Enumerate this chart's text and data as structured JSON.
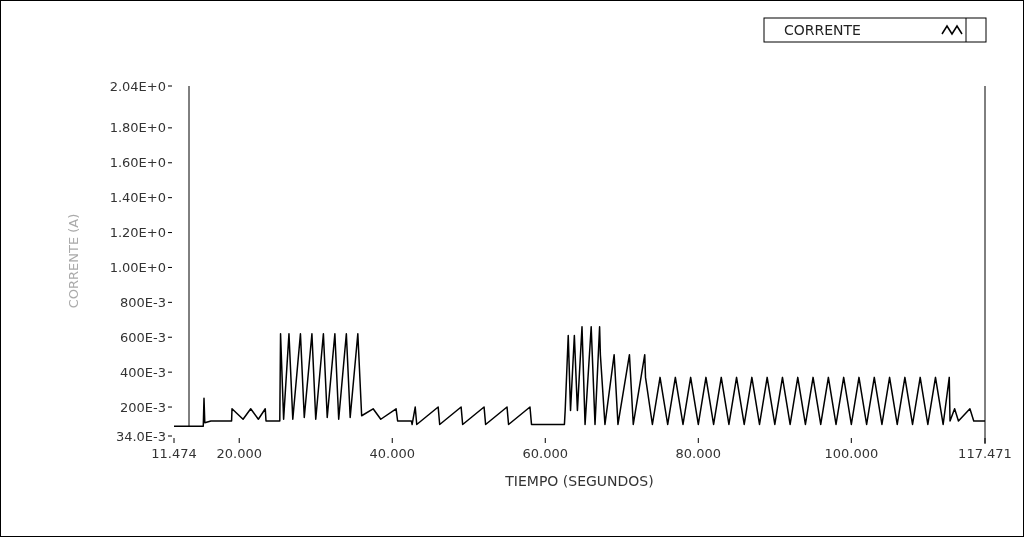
{
  "chart_data": {
    "type": "line",
    "xlabel": "TIEMPO (SEGUNDOS)",
    "ylabel": "CORRENTE (A)",
    "legend": "top right",
    "xlim": [
      11.474,
      117.471
    ],
    "xticks": [
      11.474,
      {
        "value": 20,
        "label": "20.000"
      },
      {
        "value": 40,
        "label": "40.000"
      },
      {
        "value": 60,
        "label": "60.000"
      },
      {
        "value": 80,
        "label": "80.000"
      },
      {
        "value": 100,
        "label": "100.000"
      },
      117.471
    ],
    "ylim": [
      0.034,
      2.04
    ],
    "yticks": [
      {
        "value": 0.034,
        "label": "34.0E-3"
      },
      {
        "value": 0.2,
        "label": "200E-3"
      },
      {
        "value": 0.4,
        "label": "400E-3"
      },
      {
        "value": 0.6,
        "label": "600E-3"
      },
      {
        "value": 0.8,
        "label": "800E-3"
      },
      {
        "value": 1.0,
        "label": "1.00E+0"
      },
      {
        "value": 1.2,
        "label": "1.20E+0"
      },
      {
        "value": 1.4,
        "label": "1.40E+0"
      },
      {
        "value": 1.6,
        "label": "1.60E+0"
      },
      {
        "value": 1.8,
        "label": "1.80E+0"
      },
      {
        "value": 2.04,
        "label": "2.04E+0"
      }
    ],
    "series": [
      {
        "name": "CORRENTE",
        "color": "#000000",
        "x": [
          11.474,
          15.3,
          15.395,
          15.5,
          16.3,
          19,
          19.055,
          20.5,
          21.5,
          22.5,
          23.4,
          23.5,
          25.3,
          25.4,
          25.8,
          26.5,
          27,
          28,
          28.5,
          29.5,
          30,
          31,
          31.5,
          32.5,
          33,
          34,
          34.5,
          35.5,
          36,
          37.5,
          38.5,
          40.5,
          40.7,
          42.5,
          42.6,
          43,
          43.2,
          46,
          46.2,
          49,
          49.2,
          52,
          52.2,
          55,
          55.2,
          58,
          58.2,
          62.5,
          62.6,
          63,
          63.3,
          63.8,
          64.2,
          64.8,
          65.2,
          66,
          66.5,
          67.1,
          67.2,
          67.8,
          69,
          69.5,
          71,
          71.5,
          73,
          73.1,
          74,
          75,
          76,
          77,
          78,
          79,
          80,
          81,
          82,
          83,
          84,
          85,
          86,
          87,
          88,
          89,
          90,
          91,
          92,
          93,
          94,
          95,
          96,
          97,
          98,
          99,
          100,
          101,
          102,
          103,
          104,
          105,
          106,
          107,
          108,
          109,
          110,
          111,
          112,
          112.8,
          112.9,
          113.5,
          114,
          115.5,
          116,
          117.471
        ],
        "values": [
          0.09,
          0.09,
          0.25,
          0.11,
          0.12,
          0.12,
          0.19,
          0.13,
          0.19,
          0.13,
          0.19,
          0.12,
          0.12,
          0.62,
          0.13,
          0.62,
          0.13,
          0.62,
          0.14,
          0.62,
          0.13,
          0.62,
          0.14,
          0.62,
          0.13,
          0.62,
          0.14,
          0.62,
          0.15,
          0.19,
          0.13,
          0.19,
          0.12,
          0.12,
          0.1,
          0.2,
          0.1,
          0.2,
          0.1,
          0.2,
          0.1,
          0.2,
          0.1,
          0.2,
          0.1,
          0.2,
          0.1,
          0.1,
          0.18,
          0.61,
          0.18,
          0.61,
          0.18,
          0.66,
          0.1,
          0.66,
          0.1,
          0.66,
          0.5,
          0.1,
          0.5,
          0.1,
          0.5,
          0.1,
          0.5,
          0.37,
          0.1,
          0.37,
          0.1,
          0.37,
          0.1,
          0.37,
          0.1,
          0.37,
          0.1,
          0.37,
          0.1,
          0.37,
          0.1,
          0.37,
          0.1,
          0.37,
          0.1,
          0.37,
          0.1,
          0.37,
          0.1,
          0.37,
          0.1,
          0.37,
          0.1,
          0.37,
          0.1,
          0.37,
          0.1,
          0.37,
          0.1,
          0.37,
          0.1,
          0.37,
          0.1,
          0.37,
          0.1,
          0.37,
          0.1,
          0.37,
          0.12,
          0.19,
          0.12,
          0.19,
          0.12,
          0.12
        ]
      }
    ]
  }
}
